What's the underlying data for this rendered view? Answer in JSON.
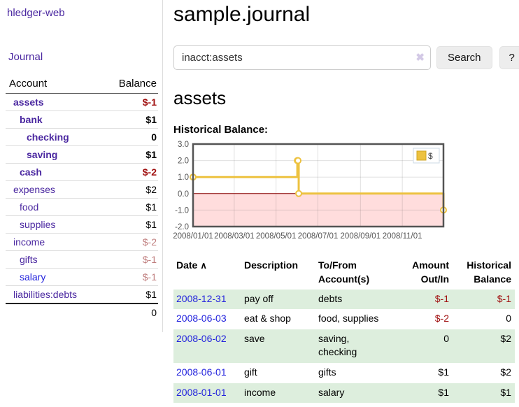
{
  "sidebar": {
    "brand": "hledger-web",
    "nav_journal": "Journal",
    "header": {
      "account": "Account",
      "balance": "Balance"
    },
    "accounts": [
      {
        "name": "assets",
        "balance": "$-1"
      },
      {
        "name": "bank",
        "balance": "$1"
      },
      {
        "name": "checking",
        "balance": "0"
      },
      {
        "name": "saving",
        "balance": "$1"
      },
      {
        "name": "cash",
        "balance": "$-2"
      },
      {
        "name": "expenses",
        "balance": "$2"
      },
      {
        "name": "food",
        "balance": "$1"
      },
      {
        "name": "supplies",
        "balance": "$1"
      },
      {
        "name": "income",
        "balance": "$-2"
      },
      {
        "name": "gifts",
        "balance": "$-1"
      },
      {
        "name": "salary",
        "balance": "$-1"
      },
      {
        "name": "liabilities:debts",
        "balance": "$1"
      }
    ],
    "total": "0"
  },
  "header": {
    "title": "sample.journal"
  },
  "search": {
    "query": "inacct:assets",
    "clear_icon": "✖",
    "button_label": "Search",
    "help_label": "?"
  },
  "account_page": {
    "heading": "assets",
    "chart_title": "Historical Balance:"
  },
  "register": {
    "sort_icon": "∧",
    "headers": {
      "date": "Date",
      "description": "Description",
      "accounts": "To/From Account(s)",
      "amount": "Amount Out/In",
      "balance": "Historical Balance"
    },
    "rows": [
      {
        "date": "2008-12-31",
        "description": "pay off",
        "accounts": "debts",
        "amount": "$-1",
        "balance": "$-1"
      },
      {
        "date": "2008-06-03",
        "description": "eat & shop",
        "accounts": "food, supplies",
        "amount": "$-2",
        "balance": "0"
      },
      {
        "date": "2008-06-02",
        "description": "save",
        "accounts": "saving, checking",
        "amount": "0",
        "balance": "$2"
      },
      {
        "date": "2008-06-01",
        "description": "gift",
        "accounts": "gifts",
        "amount": "$1",
        "balance": "$2"
      },
      {
        "date": "2008-01-01",
        "description": "income",
        "accounts": "salary",
        "amount": "$1",
        "balance": "$1"
      }
    ]
  },
  "chart_data": {
    "type": "line",
    "title": "Historical Balance",
    "step": true,
    "series": [
      {
        "name": "$",
        "color": "#edc240",
        "points": [
          [
            "2008-01-01",
            1
          ],
          [
            "2008-06-01",
            2
          ],
          [
            "2008-06-02",
            2
          ],
          [
            "2008-06-03",
            0
          ],
          [
            "2008-12-31",
            -1
          ]
        ]
      }
    ],
    "xlim": [
      "2008-01-01",
      "2008-12-31"
    ],
    "ylim": [
      -2,
      3
    ],
    "yticks": [
      {
        "value": 3,
        "label": "3.0"
      },
      {
        "value": 2,
        "label": "2.0"
      },
      {
        "value": 1,
        "label": "1.0"
      },
      {
        "value": 0,
        "label": "0.0"
      },
      {
        "value": -1,
        "label": "-1.0"
      },
      {
        "value": -2,
        "label": "-2.0"
      }
    ],
    "xticks": [
      {
        "value": "2008-01-01",
        "label": "2008/01/01"
      },
      {
        "value": "2008-03-01",
        "label": "2008/03/01"
      },
      {
        "value": "2008-05-01",
        "label": "2008/05/01"
      },
      {
        "value": "2008-07-01",
        "label": "2008/07/01"
      },
      {
        "value": "2008-09-01",
        "label": "2008/09/01"
      },
      {
        "value": "2008-11-01",
        "label": "2008/11/01"
      }
    ],
    "grid": true,
    "negative_fill": "#ffdddd",
    "zero_line_color": "#8b0000",
    "border_color": "#545454",
    "legend_position": "top-right",
    "legend_label": "$"
  }
}
